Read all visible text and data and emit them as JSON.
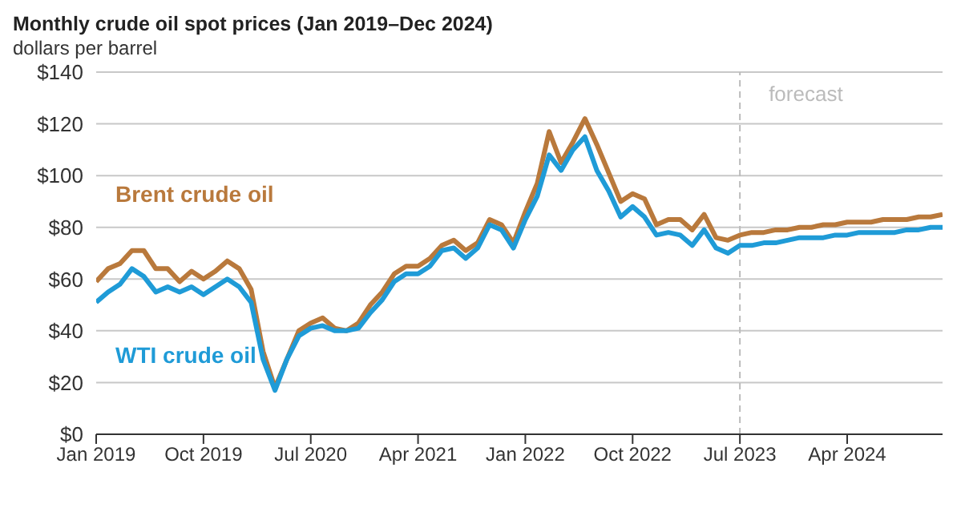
{
  "chart_data": {
    "type": "line",
    "title": "Monthly crude oil spot prices (Jan 2019–Dec 2024)",
    "ylabel": "dollars per barrel",
    "x": [
      "2019-01",
      "2019-02",
      "2019-03",
      "2019-04",
      "2019-05",
      "2019-06",
      "2019-07",
      "2019-08",
      "2019-09",
      "2019-10",
      "2019-11",
      "2019-12",
      "2020-01",
      "2020-02",
      "2020-03",
      "2020-04",
      "2020-05",
      "2020-06",
      "2020-07",
      "2020-08",
      "2020-09",
      "2020-10",
      "2020-11",
      "2020-12",
      "2021-01",
      "2021-02",
      "2021-03",
      "2021-04",
      "2021-05",
      "2021-06",
      "2021-07",
      "2021-08",
      "2021-09",
      "2021-10",
      "2021-11",
      "2021-12",
      "2022-01",
      "2022-02",
      "2022-03",
      "2022-04",
      "2022-05",
      "2022-06",
      "2022-07",
      "2022-08",
      "2022-09",
      "2022-10",
      "2022-11",
      "2022-12",
      "2023-01",
      "2023-02",
      "2023-03",
      "2023-04",
      "2023-05",
      "2023-06",
      "2023-07",
      "2023-08",
      "2023-09",
      "2023-10",
      "2023-11",
      "2023-12",
      "2024-01",
      "2024-02",
      "2024-03",
      "2024-04",
      "2024-05",
      "2024-06",
      "2024-07",
      "2024-08",
      "2024-09",
      "2024-10",
      "2024-11",
      "2024-12"
    ],
    "series": [
      {
        "name": "Brent crude oil",
        "color": "#b9793c",
        "values": [
          59,
          64,
          66,
          71,
          71,
          64,
          64,
          59,
          63,
          60,
          63,
          67,
          64,
          56,
          32,
          18,
          29,
          40,
          43,
          45,
          41,
          40,
          43,
          50,
          55,
          62,
          65,
          65,
          68,
          73,
          75,
          71,
          74,
          83,
          81,
          74,
          86,
          97,
          117,
          105,
          113,
          122,
          112,
          101,
          90,
          93,
          91,
          81,
          83,
          83,
          79,
          85,
          76,
          75,
          77,
          78,
          78,
          79,
          79,
          80,
          80,
          81,
          81,
          82,
          82,
          82,
          83,
          83,
          83,
          84,
          84,
          85
        ]
      },
      {
        "name": "WTI crude oil",
        "color": "#1f9bd7",
        "values": [
          51,
          55,
          58,
          64,
          61,
          55,
          57,
          55,
          57,
          54,
          57,
          60,
          57,
          51,
          29,
          17,
          29,
          38,
          41,
          42,
          40,
          40,
          41,
          47,
          52,
          59,
          62,
          62,
          65,
          71,
          72,
          68,
          72,
          81,
          79,
          72,
          83,
          92,
          108,
          102,
          110,
          115,
          102,
          94,
          84,
          88,
          84,
          77,
          78,
          77,
          73,
          79,
          72,
          70,
          73,
          73,
          74,
          74,
          75,
          76,
          76,
          76,
          77,
          77,
          78,
          78,
          78,
          78,
          79,
          79,
          80,
          80
        ]
      }
    ],
    "xlim": [
      "2019-01",
      "2024-12"
    ],
    "xticks": [
      {
        "value": "2019-01",
        "label": "Jan 2019"
      },
      {
        "value": "2019-10",
        "label": "Oct 2019"
      },
      {
        "value": "2020-07",
        "label": "Jul 2020"
      },
      {
        "value": "2021-04",
        "label": "Apr 2021"
      },
      {
        "value": "2022-01",
        "label": "Jan 2022"
      },
      {
        "value": "2022-10",
        "label": "Oct 2022"
      },
      {
        "value": "2023-07",
        "label": "Jul 2023"
      },
      {
        "value": "2024-04",
        "label": "Apr 2024"
      }
    ],
    "ylim": [
      0,
      140
    ],
    "yticks": [
      {
        "value": 0,
        "label": "$0"
      },
      {
        "value": 20,
        "label": "$20"
      },
      {
        "value": 40,
        "label": "$40"
      },
      {
        "value": 60,
        "label": "$60"
      },
      {
        "value": 80,
        "label": "$80"
      },
      {
        "value": 100,
        "label": "$100"
      },
      {
        "value": 120,
        "label": "$120"
      },
      {
        "value": 140,
        "label": "$140"
      }
    ],
    "ref_lines": [
      {
        "axis": "x",
        "value": "2023-07",
        "label": "forecast",
        "color": "#bbbbbb",
        "line_style": "dashed"
      }
    ],
    "grid": "y",
    "legend": false,
    "marker": "none",
    "line_style": "solid"
  }
}
